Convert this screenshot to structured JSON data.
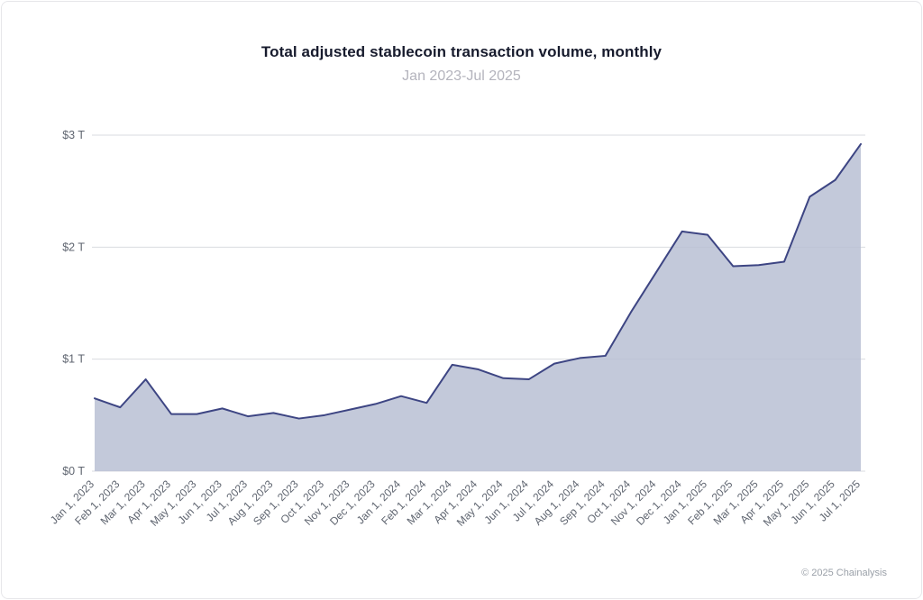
{
  "card": {
    "footer": "© 2025 Chainalysis"
  },
  "chart_data": {
    "type": "area",
    "title": "Total adjusted stablecoin transaction volume, monthly",
    "subtitle": "Jan 2023-Jul 2025",
    "categories": [
      "Jan 1, 2023",
      "Feb 1, 2023",
      "Mar 1, 2023",
      "Apr 1, 2023",
      "May 1, 2023",
      "Jun 1, 2023",
      "Jul 1, 2023",
      "Aug 1, 2023",
      "Sep 1, 2023",
      "Oct 1, 2023",
      "Nov 1, 2023",
      "Dec 1, 2023",
      "Jan 1, 2024",
      "Feb 1, 2024",
      "Mar 1, 2024",
      "Apr 1, 2024",
      "May 1, 2024",
      "Jun 1, 2024",
      "Jul 1, 2024",
      "Aug 1, 2024",
      "Sep 1, 2024",
      "Oct 1, 2024",
      "Nov 1, 2024",
      "Dec 1, 2024",
      "Jan 1, 2025",
      "Feb 1, 2025",
      "Mar 1, 2025",
      "Apr 1, 2025",
      "May 1, 2025",
      "Jun 1, 2025",
      "Jul 1, 2025"
    ],
    "values": [
      0.65,
      0.57,
      0.82,
      0.51,
      0.51,
      0.56,
      0.49,
      0.52,
      0.47,
      0.5,
      0.55,
      0.6,
      0.67,
      0.61,
      0.95,
      0.91,
      0.83,
      0.82,
      0.96,
      1.01,
      1.03,
      1.42,
      1.78,
      2.14,
      2.11,
      1.83,
      1.84,
      1.87,
      2.45,
      2.6,
      2.92
    ],
    "ylabel": "",
    "xlabel": "",
    "ylim": [
      0,
      3
    ],
    "yticks": [
      {
        "value": 0,
        "label": "$0 T"
      },
      {
        "value": 1,
        "label": "$1 T"
      },
      {
        "value": 2,
        "label": "$2 T"
      },
      {
        "value": 3,
        "label": "$3 T"
      }
    ],
    "grid": true,
    "legend": "none",
    "line_color": "#3d4583",
    "fill_color": "#b8bfd4",
    "grid_color": "#d9dbe0",
    "tick_label_color": "#5f6570"
  }
}
